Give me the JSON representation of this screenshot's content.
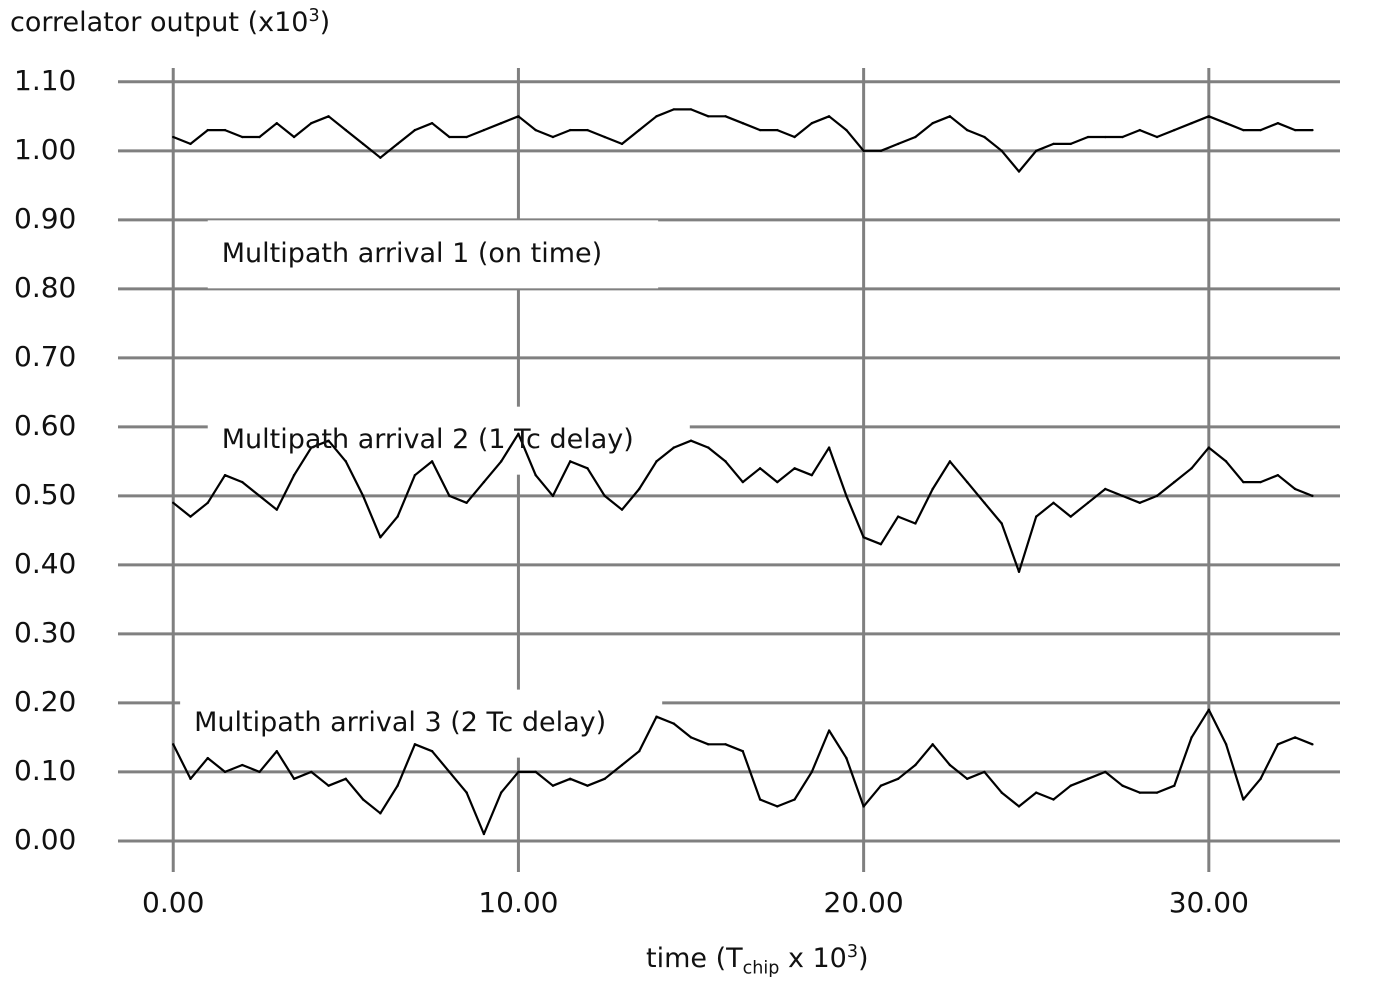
{
  "chart_data": {
    "type": "line",
    "ylabel_parts": [
      "correlator output (x10",
      "3",
      ")"
    ],
    "xlabel_parts": [
      "time (T",
      "chip",
      " x 10",
      "3",
      ")"
    ],
    "xlim": [
      -1.6,
      33.8
    ],
    "ylim": [
      -0.045,
      1.12
    ],
    "x_ticks": [
      0,
      10,
      20,
      30
    ],
    "x_tick_labels": [
      "0.00",
      "10.00",
      "20.00",
      "30.00"
    ],
    "y_ticks": [
      0,
      0.1,
      0.2,
      0.3,
      0.4,
      0.5,
      0.6,
      0.7,
      0.8,
      0.9,
      1.0,
      1.1
    ],
    "y_tick_labels": [
      "0.00",
      "0.10",
      "0.20",
      "0.30",
      "0.40",
      "0.50",
      "0.60",
      "0.70",
      "0.80",
      "0.90",
      "1.00",
      "1.10"
    ],
    "grid": true,
    "annotations": [
      {
        "text": "Multipath arrival 1 (on time)",
        "x": 1.0,
        "y": 0.85
      },
      {
        "text": "Multipath arrival 2 (1 Tc delay)",
        "x": 1.0,
        "y": 0.58
      },
      {
        "text": "Multipath arrival 3 (2 Tc delay)",
        "x": 0.2,
        "y": 0.17
      }
    ],
    "series": [
      {
        "x": [
          0,
          0.5,
          1,
          1.5,
          2,
          2.5,
          3,
          3.5,
          4,
          4.5,
          5,
          5.5,
          6,
          6.5,
          7,
          7.5,
          8,
          8.5,
          9,
          9.5,
          10,
          10.5,
          11,
          11.5,
          12,
          12.5,
          13,
          13.5,
          14,
          14.5,
          15,
          15.5,
          16,
          16.5,
          17,
          17.5,
          18,
          18.5,
          19,
          19.5,
          20,
          20.5,
          21,
          21.5,
          22,
          22.5,
          23,
          23.5,
          24,
          24.5,
          25,
          25.5,
          26,
          26.5,
          27,
          27.5,
          28,
          28.5,
          29,
          29.5,
          30,
          30.5,
          31,
          31.5,
          32,
          32.5,
          33
        ],
        "y": [
          1.02,
          1.01,
          1.03,
          1.03,
          1.02,
          1.02,
          1.04,
          1.02,
          1.04,
          1.05,
          1.03,
          1.01,
          0.99,
          1.01,
          1.03,
          1.04,
          1.02,
          1.02,
          1.03,
          1.04,
          1.05,
          1.03,
          1.02,
          1.03,
          1.03,
          1.02,
          1.01,
          1.03,
          1.05,
          1.06,
          1.06,
          1.05,
          1.05,
          1.04,
          1.03,
          1.03,
          1.02,
          1.04,
          1.05,
          1.03,
          1.0,
          1.0,
          1.01,
          1.02,
          1.04,
          1.05,
          1.03,
          1.02,
          1.0,
          0.97,
          1.0,
          1.01,
          1.01,
          1.02,
          1.02,
          1.02,
          1.03,
          1.02,
          1.03,
          1.04,
          1.05,
          1.04,
          1.03,
          1.03,
          1.04,
          1.03,
          1.03
        ]
      },
      {
        "x": [
          0,
          0.5,
          1,
          1.5,
          2,
          2.5,
          3,
          3.5,
          4,
          4.5,
          5,
          5.5,
          6,
          6.5,
          7,
          7.5,
          8,
          8.5,
          9,
          9.5,
          10,
          10.5,
          11,
          11.5,
          12,
          12.5,
          13,
          13.5,
          14,
          14.5,
          15,
          15.5,
          16,
          16.5,
          17,
          17.5,
          18,
          18.5,
          19,
          19.5,
          20,
          20.5,
          21,
          21.5,
          22,
          22.5,
          23,
          23.5,
          24,
          24.5,
          25,
          25.5,
          26,
          26.5,
          27,
          27.5,
          28,
          28.5,
          29,
          29.5,
          30,
          30.5,
          31,
          31.5,
          32,
          32.5,
          33
        ],
        "y": [
          0.49,
          0.47,
          0.49,
          0.53,
          0.52,
          0.5,
          0.48,
          0.53,
          0.57,
          0.58,
          0.55,
          0.5,
          0.44,
          0.47,
          0.53,
          0.55,
          0.5,
          0.49,
          0.52,
          0.55,
          0.59,
          0.53,
          0.5,
          0.55,
          0.54,
          0.5,
          0.48,
          0.51,
          0.55,
          0.57,
          0.58,
          0.57,
          0.55,
          0.52,
          0.54,
          0.52,
          0.54,
          0.53,
          0.57,
          0.5,
          0.44,
          0.43,
          0.47,
          0.46,
          0.51,
          0.55,
          0.52,
          0.49,
          0.46,
          0.39,
          0.47,
          0.49,
          0.47,
          0.49,
          0.51,
          0.5,
          0.49,
          0.5,
          0.52,
          0.54,
          0.57,
          0.55,
          0.52,
          0.52,
          0.53,
          0.51,
          0.5
        ]
      },
      {
        "x": [
          0,
          0.5,
          1,
          1.5,
          2,
          2.5,
          3,
          3.5,
          4,
          4.5,
          5,
          5.5,
          6,
          6.5,
          7,
          7.5,
          8,
          8.5,
          9,
          9.5,
          10,
          10.5,
          11,
          11.5,
          12,
          12.5,
          13,
          13.5,
          14,
          14.5,
          15,
          15.5,
          16,
          16.5,
          17,
          17.5,
          18,
          18.5,
          19,
          19.5,
          20,
          20.5,
          21,
          21.5,
          22,
          22.5,
          23,
          23.5,
          24,
          24.5,
          25,
          25.5,
          26,
          26.5,
          27,
          27.5,
          28,
          28.5,
          29,
          29.5,
          30,
          30.5,
          31,
          31.5,
          32,
          32.5,
          33
        ],
        "y": [
          0.14,
          0.09,
          0.12,
          0.1,
          0.11,
          0.1,
          0.13,
          0.09,
          0.1,
          0.08,
          0.09,
          0.06,
          0.04,
          0.08,
          0.14,
          0.13,
          0.1,
          0.07,
          0.01,
          0.07,
          0.1,
          0.1,
          0.08,
          0.09,
          0.08,
          0.09,
          0.11,
          0.13,
          0.18,
          0.17,
          0.15,
          0.14,
          0.14,
          0.13,
          0.06,
          0.05,
          0.06,
          0.1,
          0.16,
          0.12,
          0.05,
          0.08,
          0.09,
          0.11,
          0.14,
          0.11,
          0.09,
          0.1,
          0.07,
          0.05,
          0.07,
          0.06,
          0.08,
          0.09,
          0.1,
          0.08,
          0.07,
          0.07,
          0.08,
          0.15,
          0.19,
          0.14,
          0.06,
          0.09,
          0.14,
          0.15,
          0.14
        ]
      }
    ]
  }
}
